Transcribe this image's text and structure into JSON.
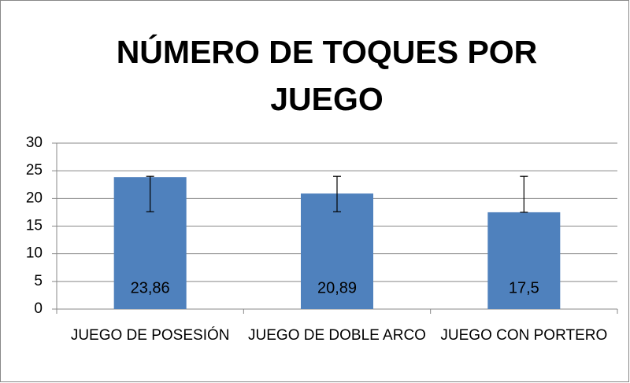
{
  "chart_data": {
    "type": "bar",
    "title": "NÚMERO DE TOQUES POR JUEGO",
    "categories": [
      "JUEGO DE POSESIÓN",
      "JUEGO DE DOBLE ARCO",
      "JUEGO CON PORTERO"
    ],
    "values": [
      23.86,
      20.89,
      17.5
    ],
    "value_labels": [
      "23,86",
      "20,89",
      "17,5"
    ],
    "error_low": [
      17.6,
      17.6,
      17.5
    ],
    "error_high": [
      24,
      24,
      24
    ],
    "color": "#4f81bd",
    "ylim": [
      0,
      30
    ],
    "yticks": [
      0,
      5,
      10,
      15,
      20,
      25,
      30
    ],
    "grid": true
  }
}
